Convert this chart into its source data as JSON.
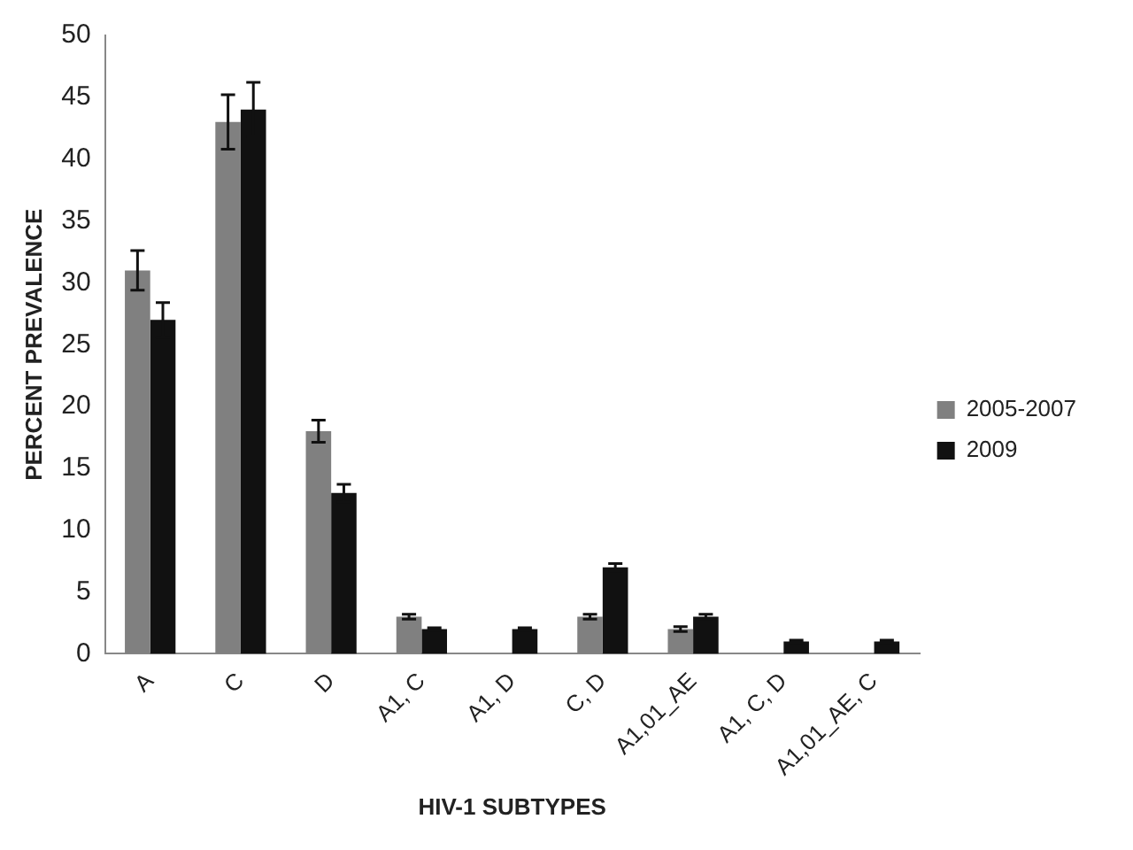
{
  "chart_data": {
    "type": "bar",
    "xlabel": "HIV-1 SUBTYPES",
    "ylabel": "PERCENT PREVALENCE",
    "categories": [
      "A",
      "C",
      "D",
      "A1, C",
      "A1, D",
      "C, D",
      "A1,01_AE",
      "A1, C, D",
      "A1,01_AE, C"
    ],
    "series": [
      {
        "name": "2005-2007",
        "color": "#808080",
        "values": [
          31,
          43,
          18,
          3,
          null,
          3,
          2,
          null,
          null
        ],
        "errors": [
          1.6,
          2.2,
          0.9,
          0.2,
          null,
          0.2,
          0.2,
          null,
          null
        ]
      },
      {
        "name": "2009",
        "color": "#111111",
        "values": [
          27,
          44,
          13,
          2,
          2,
          7,
          3,
          1,
          1
        ],
        "errors": [
          1.4,
          2.2,
          0.7,
          0.1,
          0.1,
          0.3,
          0.2,
          0.1,
          0.1
        ]
      }
    ],
    "ylim": [
      0,
      50
    ],
    "yticks": [
      0,
      5,
      10,
      15,
      20,
      25,
      30,
      35,
      40,
      45,
      50
    ],
    "grid": false,
    "legend": "right"
  }
}
